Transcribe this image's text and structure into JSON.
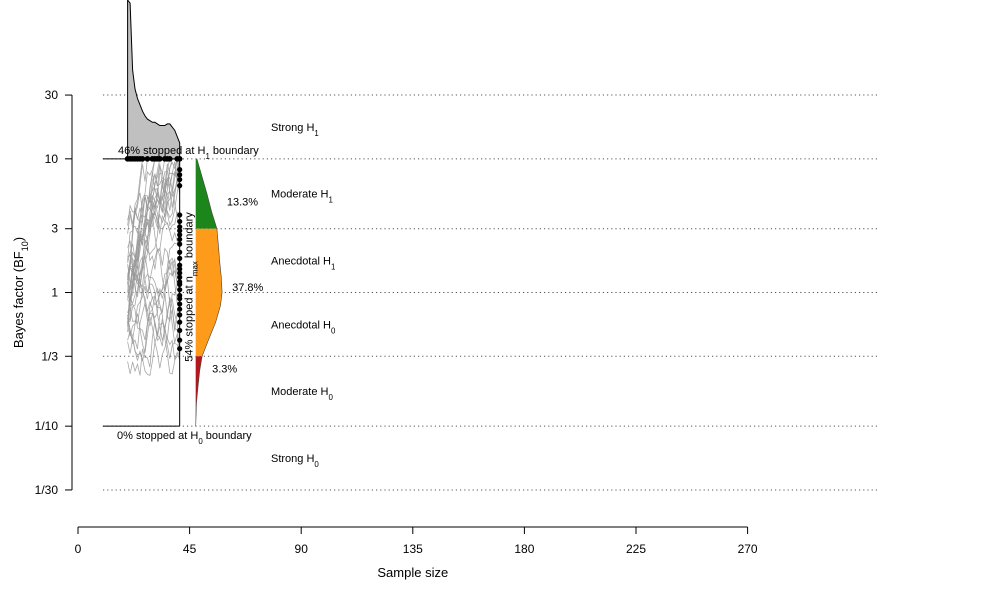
{
  "chart_data": {
    "type": "line",
    "xlabel": "Sample size",
    "ylabel": "Bayes factor (BF",
    "ylabel_sub": "10",
    "ylabel_end": ")",
    "x_ticks": [
      0,
      45,
      90,
      135,
      180,
      225,
      270
    ],
    "x_tick_labels": [
      "0",
      "45",
      "90",
      "135",
      "180",
      "225",
      "270"
    ],
    "xlim": [
      0,
      270
    ],
    "y_ticks": [
      0.03333,
      0.1,
      0.3333,
      1,
      3,
      10,
      30
    ],
    "y_tick_labels": [
      "1/30",
      "1/10",
      "1/3",
      "1",
      "3",
      "10",
      "30"
    ],
    "ylim_log10": [
      -1.5,
      1.5
    ],
    "y_scale": "log",
    "grid": "dotted horizontal at y ticks",
    "zones": [
      {
        "label": "Strong H",
        "sub": "1",
        "y": 17.3
      },
      {
        "label": "Moderate H",
        "sub": "1",
        "y": 5.48
      },
      {
        "label": "Anecdotal H",
        "sub": "1",
        "y": 1.73
      },
      {
        "label": "Anecdotal H",
        "sub": "0",
        "y": 0.577
      },
      {
        "label": "Moderate H",
        "sub": "0",
        "y": 0.183
      },
      {
        "label": "Strong H",
        "sub": "0",
        "y": 0.058
      }
    ],
    "boundaries": {
      "upper": 10,
      "lower": 0.1,
      "n_min": 10,
      "n_max": 41
    },
    "annotations": {
      "upper": {
        "pre": "46% stopped at H",
        "sub": "1",
        "post": " boundary"
      },
      "lower": {
        "pre": "0% stopped at H",
        "sub": "0",
        "post": " boundary"
      },
      "nmax": {
        "pre": "54% stopped at n",
        "sub": "max",
        "post": " boundary"
      }
    },
    "upper_density": {
      "x": [
        20,
        21,
        22,
        23,
        24,
        25,
        26,
        27,
        28,
        29,
        30,
        31,
        32,
        33,
        34,
        35,
        36,
        37,
        38,
        39,
        40,
        41
      ],
      "height": [
        1.0,
        0.98,
        0.56,
        0.44,
        0.38,
        0.34,
        0.3,
        0.27,
        0.25,
        0.24,
        0.23,
        0.23,
        0.22,
        0.21,
        0.21,
        0.21,
        0.22,
        0.22,
        0.2,
        0.18,
        0.14,
        0.1
      ],
      "color": "#c0c0c0"
    },
    "upper_stops_n": [
      20,
      21,
      22,
      23,
      24,
      25,
      26,
      28,
      30,
      31,
      32,
      33,
      35,
      36,
      37,
      40,
      41
    ],
    "nmax_stops_bf": [
      8.3,
      7.6,
      7.0,
      6.3,
      3.8,
      3.4,
      3.1,
      2.9,
      2.7,
      2.5,
      2.3,
      2.0,
      1.8,
      1.6,
      1.5,
      1.4,
      1.3,
      1.2,
      1.15,
      1.05,
      0.95,
      0.9,
      0.82,
      0.75,
      0.68,
      0.6,
      0.52,
      0.44,
      0.38
    ],
    "final_density": {
      "y": [
        0.1,
        0.15,
        0.2,
        0.26,
        0.3333,
        0.45,
        0.6,
        0.8,
        1.0,
        1.3,
        1.7,
        2.2,
        3.0,
        4.0,
        5.5,
        7.5,
        10
      ],
      "width": [
        0.0,
        0.02,
        0.06,
        0.1,
        0.16,
        0.33,
        0.5,
        0.62,
        0.66,
        0.64,
        0.6,
        0.57,
        0.53,
        0.4,
        0.28,
        0.15,
        0.03
      ]
    },
    "final_regions": [
      {
        "label": "13.3%",
        "from": 3,
        "to": 10,
        "color": "#1d861a",
        "label_y": 4.8
      },
      {
        "label": "37.8%",
        "from": 0.3333,
        "to": 3,
        "color": "#ff9b1a",
        "label_y": 1.1
      },
      {
        "label": "3.3%",
        "from": 0.1,
        "to": 0.3333,
        "color": "#b2171c",
        "label_y": 0.27
      }
    ],
    "paths_color": "#999999"
  }
}
